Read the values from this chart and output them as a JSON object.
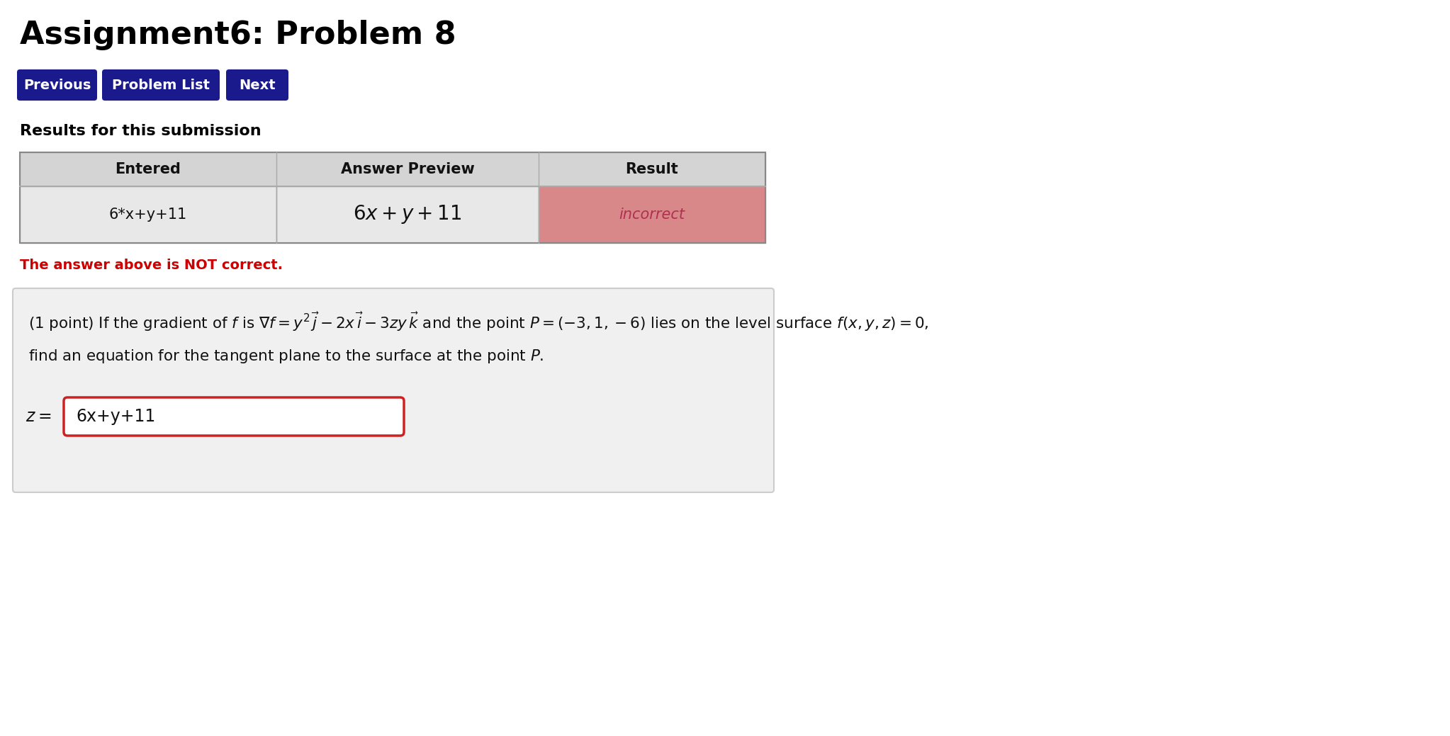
{
  "title": "Assignment6: Problem 8",
  "bg_color": "#ffffff",
  "title_color": "#000000",
  "title_fontsize": 32,
  "btn_labels": [
    "Previous",
    "Problem List",
    "Next"
  ],
  "btn_color": "#1a1a8c",
  "btn_text_color": "#ffffff",
  "btn_fontsize": 14,
  "section_label": "Results for this submission",
  "table_headers": [
    "Entered",
    "Answer Preview",
    "Result"
  ],
  "table_row_entered": "6*x+y+11",
  "table_row_preview": "$6x + y + 11$",
  "table_row_result": "incorrect",
  "table_header_bg": "#d4d4d4",
  "table_row_bg_left": "#e8e8e8",
  "table_row_bg_mid": "#e8e8e8",
  "table_row_bg_right": "#d9888a",
  "incorrect_color": "#b03050",
  "not_correct_text": "The answer above is NOT correct.",
  "not_correct_color": "#cc0000",
  "problem_box_bg": "#f0f0f0",
  "answer_value": "6x+y+11",
  "answer_box_border": "#cc2222",
  "answer_box_bg": "#ffffff"
}
